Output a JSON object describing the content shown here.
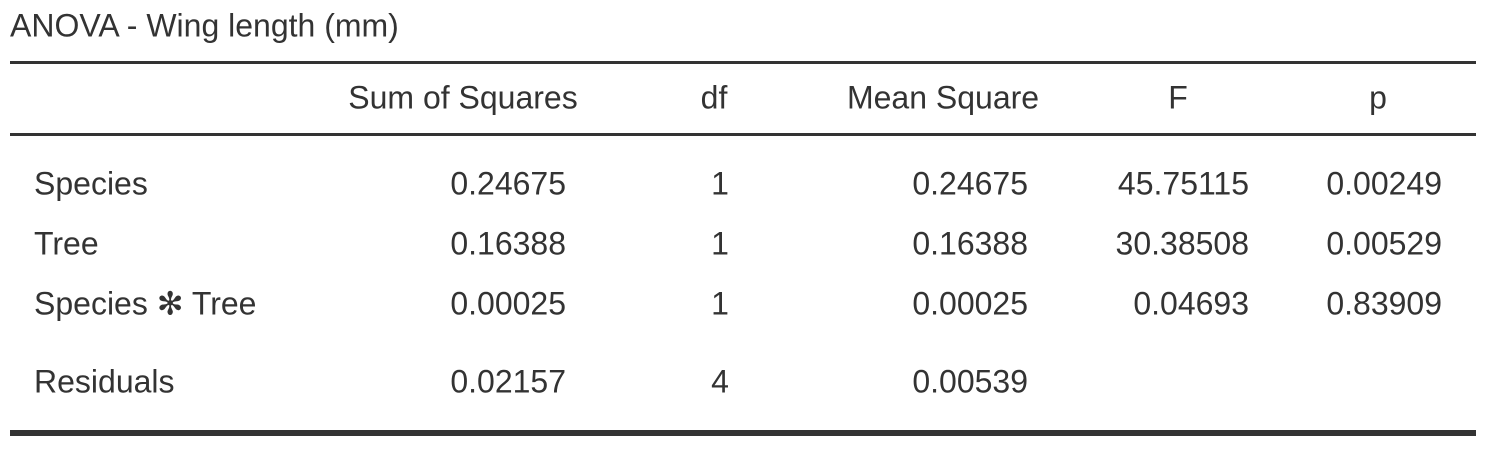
{
  "table": {
    "title": "ANOVA - Wing length (mm)",
    "columns": [
      "Sum of Squares",
      "df",
      "Mean Square",
      "F",
      "p"
    ],
    "rows": [
      [
        "Species",
        "0.24675",
        "1",
        "0.24675",
        "45.75115",
        "0.00249"
      ],
      [
        "Tree",
        "0.16388",
        "1",
        "0.16388",
        "30.38508",
        "0.00529"
      ],
      [
        "Species ✻ Tree",
        "0.00025",
        "1",
        "0.00025",
        "0.04693",
        "0.83909"
      ],
      [
        "Residuals",
        "0.02157",
        "4",
        "0.00539"
      ]
    ]
  }
}
